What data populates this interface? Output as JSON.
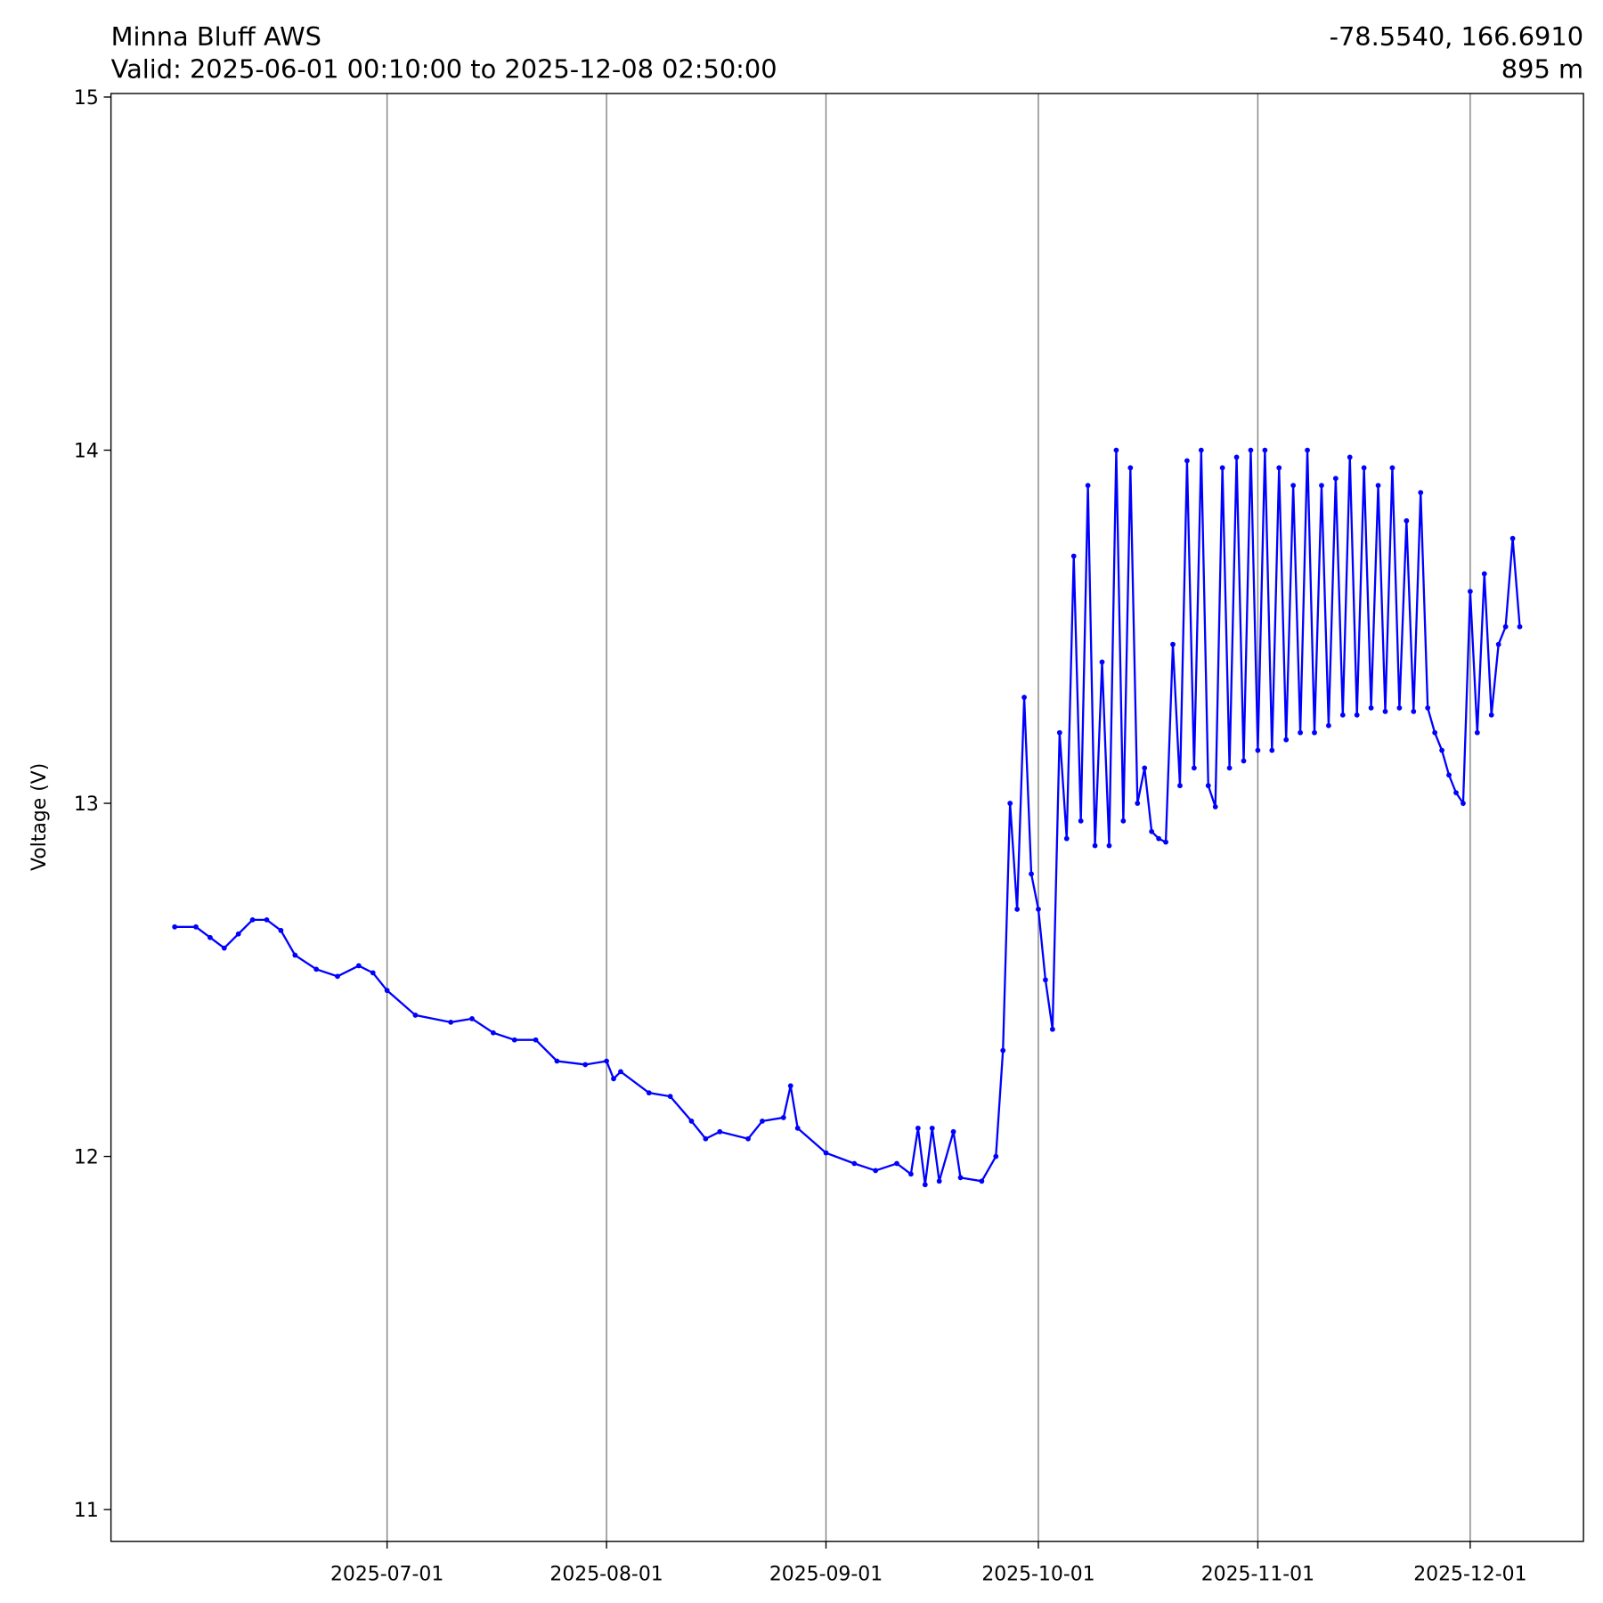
{
  "chart_data": {
    "type": "line",
    "title": "Minna Bluff AWS",
    "subtitle": "Valid: 2025-06-01 00:10:00 to 2025-12-08 02:50:00",
    "location": "-78.5540, 166.6910",
    "elevation": "895 m",
    "y_label": "Voltage (V)",
    "xlim": [
      "2025-05-23",
      "2025-12-17"
    ],
    "xticks": [
      "2025-07-01",
      "2025-08-01",
      "2025-09-01",
      "2025-10-01",
      "2025-11-01",
      "2025-12-01"
    ],
    "ylim": [
      10.91,
      15.01
    ],
    "yticks": [
      11,
      12,
      13,
      14,
      15
    ],
    "grid": "x",
    "series": [
      {
        "color": "#0000ff",
        "x": [
          "2025-06-01",
          "2025-06-04",
          "2025-06-06",
          "2025-06-08",
          "2025-06-10",
          "2025-06-12",
          "2025-06-14",
          "2025-06-16",
          "2025-06-18",
          "2025-06-21",
          "2025-06-24",
          "2025-06-27",
          "2025-06-29",
          "2025-07-01",
          "2025-07-05",
          "2025-07-10",
          "2025-07-13",
          "2025-07-16",
          "2025-07-19",
          "2025-07-22",
          "2025-07-25",
          "2025-07-29",
          "2025-08-01",
          "2025-08-02",
          "2025-08-03",
          "2025-08-07",
          "2025-08-10",
          "2025-08-13",
          "2025-08-15",
          "2025-08-17",
          "2025-08-21",
          "2025-08-23",
          "2025-08-26",
          "2025-08-27",
          "2025-08-28",
          "2025-09-01",
          "2025-09-05",
          "2025-09-08",
          "2025-09-11",
          "2025-09-13",
          "2025-09-14",
          "2025-09-15",
          "2025-09-16",
          "2025-09-17",
          "2025-09-19",
          "2025-09-20",
          "2025-09-23",
          "2025-09-25",
          "2025-09-26",
          "2025-09-27",
          "2025-09-28",
          "2025-09-29",
          "2025-09-30",
          "2025-10-01",
          "2025-10-02",
          "2025-10-03",
          "2025-10-04",
          "2025-10-05",
          "2025-10-06",
          "2025-10-07",
          "2025-10-08",
          "2025-10-09",
          "2025-10-10",
          "2025-10-11",
          "2025-10-12",
          "2025-10-13",
          "2025-10-14",
          "2025-10-15",
          "2025-10-16",
          "2025-10-17",
          "2025-10-18",
          "2025-10-19",
          "2025-10-20",
          "2025-10-21",
          "2025-10-22",
          "2025-10-23",
          "2025-10-24",
          "2025-10-25",
          "2025-10-26",
          "2025-10-27",
          "2025-10-28",
          "2025-10-29",
          "2025-10-30",
          "2025-10-31",
          "2025-11-01",
          "2025-11-02",
          "2025-11-03",
          "2025-11-04",
          "2025-11-05",
          "2025-11-06",
          "2025-11-07",
          "2025-11-08",
          "2025-11-09",
          "2025-11-10",
          "2025-11-11",
          "2025-11-12",
          "2025-11-13",
          "2025-11-14",
          "2025-11-15",
          "2025-11-16",
          "2025-11-17",
          "2025-11-18",
          "2025-11-19",
          "2025-11-20",
          "2025-11-21",
          "2025-11-22",
          "2025-11-23",
          "2025-11-24",
          "2025-11-25",
          "2025-11-26",
          "2025-11-27",
          "2025-11-28",
          "2025-11-29",
          "2025-11-30",
          "2025-12-01",
          "2025-12-02",
          "2025-12-03",
          "2025-12-04",
          "2025-12-05",
          "2025-12-06",
          "2025-12-07",
          "2025-12-08"
        ],
        "values": [
          12.65,
          12.65,
          12.62,
          12.59,
          12.63,
          12.67,
          12.67,
          12.64,
          12.57,
          12.53,
          12.51,
          12.54,
          12.52,
          12.47,
          12.4,
          12.38,
          12.39,
          12.35,
          12.33,
          12.33,
          12.27,
          12.26,
          12.27,
          12.22,
          12.24,
          12.18,
          12.17,
          12.1,
          12.05,
          12.07,
          12.05,
          12.1,
          12.11,
          12.2,
          12.08,
          12.01,
          11.98,
          11.96,
          11.98,
          11.95,
          12.08,
          11.92,
          12.08,
          11.93,
          12.07,
          11.94,
          11.93,
          12.0,
          12.3,
          13.0,
          12.7,
          13.3,
          12.8,
          12.7,
          12.5,
          12.36,
          13.2,
          12.9,
          13.7,
          12.95,
          13.9,
          12.88,
          13.4,
          12.88,
          14.0,
          12.95,
          13.95,
          13.0,
          13.1,
          12.92,
          12.9,
          12.89,
          13.45,
          13.05,
          13.97,
          13.1,
          14.0,
          13.05,
          12.99,
          13.95,
          13.1,
          13.98,
          13.12,
          14.0,
          13.15,
          14.0,
          13.15,
          13.95,
          13.18,
          13.9,
          13.2,
          14.0,
          13.2,
          13.9,
          13.22,
          13.92,
          13.25,
          13.98,
          13.25,
          13.95,
          13.27,
          13.9,
          13.26,
          13.95,
          13.27,
          13.8,
          13.26,
          13.88,
          13.27,
          13.2,
          13.15,
          13.08,
          13.03,
          13.0,
          13.6,
          13.2,
          13.65,
          13.25,
          13.45,
          13.5,
          13.75,
          13.5
        ]
      }
    ]
  }
}
